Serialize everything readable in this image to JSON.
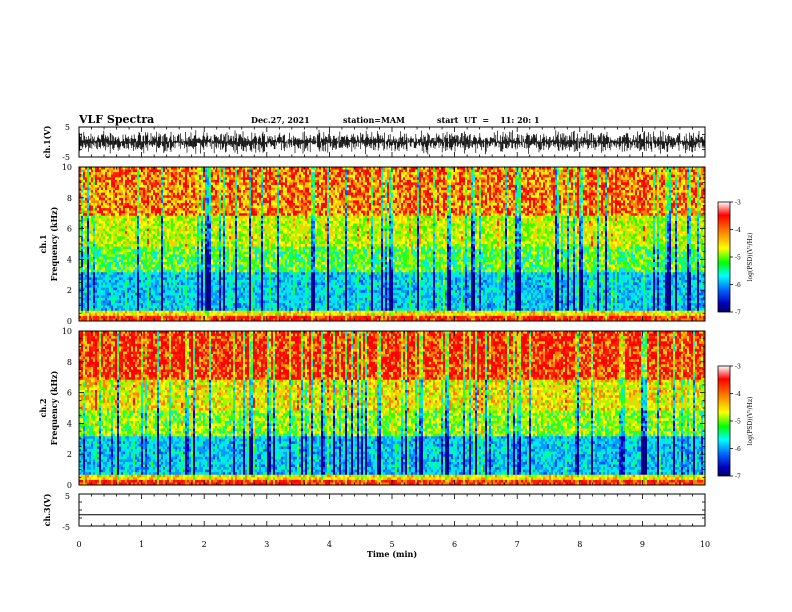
{
  "header": {
    "title": "VLF Spectra",
    "date": "Dec.27, 2021",
    "station": "station=MAM",
    "start": "start  UT  =    11: 20: 1"
  },
  "colorbar": {
    "label": "log(PSD)(V²/Hz)",
    "ticks": [
      "-3",
      "-4",
      "-5",
      "-6",
      "-7"
    ],
    "colors": [
      "#ff0000",
      "#ff8000",
      "#ffff00",
      "#00ff00",
      "#00ffff",
      "#0080ff",
      "#0000cc",
      "#000080"
    ]
  },
  "chart_data": [
    {
      "type": "line",
      "name": "waveform-ch1",
      "ylabel": "ch.1(V)",
      "ylim": [
        -5,
        5
      ],
      "yticks": [
        "5",
        "-5"
      ],
      "xlim": [
        0,
        10
      ],
      "description_values": "dense noisy waveform, amplitude approx. ±4 V"
    },
    {
      "type": "heatmap",
      "ylabel": "ch.1\nFrequency (kHz)",
      "ylim": [
        0,
        10
      ],
      "yticks": [
        "0",
        "2",
        "4",
        "6",
        "8",
        "10"
      ],
      "xlim": [
        0,
        10
      ],
      "zlim": [
        -7,
        -3
      ],
      "zlabel": "log(PSD)(V²/Hz)"
    },
    {
      "type": "heatmap",
      "ylabel": "ch.2\nFrequency (kHz)",
      "ylim": [
        0,
        10
      ],
      "yticks": [
        "0",
        "2",
        "4",
        "6",
        "8",
        "10"
      ],
      "xlim": [
        0,
        10
      ],
      "zlim": [
        -7,
        -3
      ],
      "zlabel": "log(PSD)(V²/Hz)"
    },
    {
      "type": "line",
      "ylabel": "ch.3(V)",
      "ylim": [
        -5,
        5
      ],
      "yticks": [
        "5",
        "-5"
      ],
      "xlim": [
        0,
        10
      ],
      "xticks": [
        "0",
        "1",
        "2",
        "3",
        "4",
        "5",
        "6",
        "7",
        "8",
        "9",
        "10"
      ],
      "xlabel": "Time (min)",
      "values_flat": -1.5
    }
  ]
}
